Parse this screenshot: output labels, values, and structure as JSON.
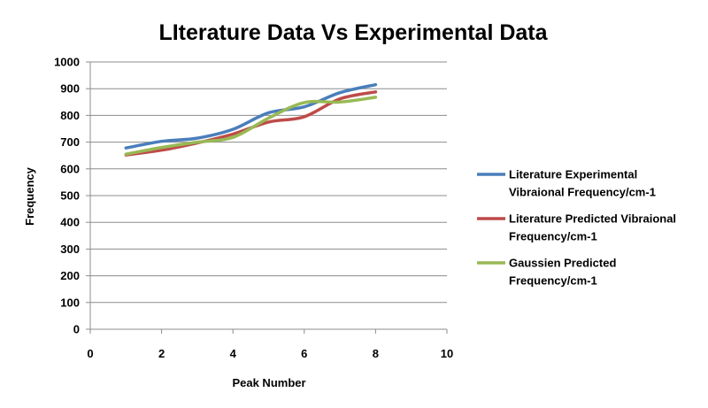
{
  "chart_data": {
    "type": "line",
    "title": "LIterature Data Vs Experimental Data",
    "xlabel": "Peak Number",
    "ylabel": "Frequency",
    "xlim": [
      0,
      10
    ],
    "ylim": [
      0,
      1000
    ],
    "x_ticks": [
      0,
      2,
      4,
      6,
      8,
      10
    ],
    "y_ticks": [
      0,
      100,
      200,
      300,
      400,
      500,
      600,
      700,
      800,
      900,
      1000
    ],
    "grid": "horizontal",
    "legend_position": "right",
    "x": [
      1,
      2,
      3,
      4,
      5,
      6,
      7,
      8
    ],
    "series": [
      {
        "name_lines": [
          "Literature Experimental",
          "Vibraional Frequency/cm-1"
        ],
        "color": "#4a7ebb",
        "values": [
          678,
          703,
          715,
          748,
          810,
          832,
          885,
          915
        ]
      },
      {
        "name_lines": [
          "Literature Predicted Vibraional",
          "Frequency/cm-1"
        ],
        "color": "#be4b48",
        "values": [
          652,
          670,
          697,
          730,
          775,
          795,
          862,
          888
        ]
      },
      {
        "name_lines": [
          "Gaussien Predicted",
          "Frequency/cm-1"
        ],
        "color": "#98b954",
        "values": [
          655,
          680,
          700,
          718,
          790,
          848,
          850,
          868
        ]
      }
    ]
  }
}
